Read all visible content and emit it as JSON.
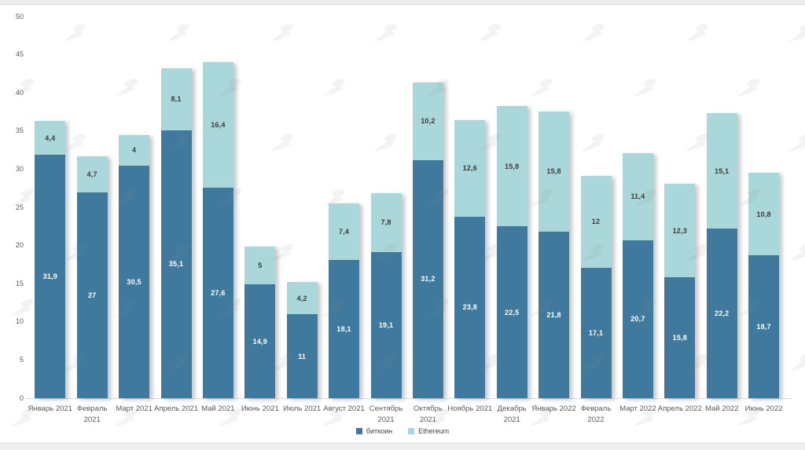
{
  "chart_data": {
    "type": "bar",
    "stacked": true,
    "title": "",
    "xlabel": "",
    "ylabel": "",
    "ylim": [
      0,
      50
    ],
    "yticks": [
      0,
      5,
      10,
      15,
      20,
      25,
      30,
      35,
      40,
      45,
      50
    ],
    "grid": false,
    "legend_position": "bottom-center",
    "decimal_separator": ",",
    "categories": [
      "Январь 2021",
      "Февраль\n2021",
      "Март 2021",
      "Апрель 2021",
      "Май 2021",
      "Июнь 2021",
      "Июль 2021",
      "Август 2021",
      "Сентябрь\n2021",
      "Октябрь\n2021",
      "Ноябрь 2021",
      "Декабрь\n2021",
      "Январь 2022",
      "Февраль\n2022",
      "Март 2022",
      "Апрель 2022",
      "Май 2022",
      "Июнь 2022"
    ],
    "series": [
      {
        "key": "bitcoin",
        "name": "биткоин",
        "color": "#3f7a9e",
        "label_color": "#ffffff",
        "values": [
          31.9,
          27,
          30.5,
          35.1,
          27.6,
          14.9,
          11,
          18.1,
          19.1,
          31.2,
          23.8,
          22.5,
          21.8,
          17.1,
          20.7,
          15.8,
          22.2,
          18.7
        ],
        "labels": [
          "31,9",
          "27",
          "30,5",
          "35,1",
          "27,6",
          "14,9",
          "11",
          "18,1",
          "19,1",
          "31,2",
          "23,8",
          "22,5",
          "21,8",
          "17,1",
          "20,7",
          "15,8",
          "22,2",
          "18,7"
        ]
      },
      {
        "key": "ethereum",
        "name": "Ethereum",
        "color": "#a9d7da",
        "label_color": "#3b3b3b",
        "values": [
          4.4,
          4.7,
          4,
          8.1,
          16.4,
          5,
          4.2,
          7.4,
          7.8,
          10.2,
          12.6,
          15.8,
          15.8,
          12,
          11.4,
          12.3,
          15.1,
          10.8
        ],
        "labels": [
          "4,4",
          "4,7",
          "4",
          "8,1",
          "16,4",
          "5",
          "4,2",
          "7,4",
          "7,8",
          "10,2",
          "12,6",
          "15,8",
          "15,8",
          "12",
          "11,4",
          "12,3",
          "15,1",
          "10,8"
        ]
      }
    ]
  },
  "watermark": {
    "icon": "forklog-logo",
    "color": "#8a8a8a",
    "opacity": 0.1
  }
}
